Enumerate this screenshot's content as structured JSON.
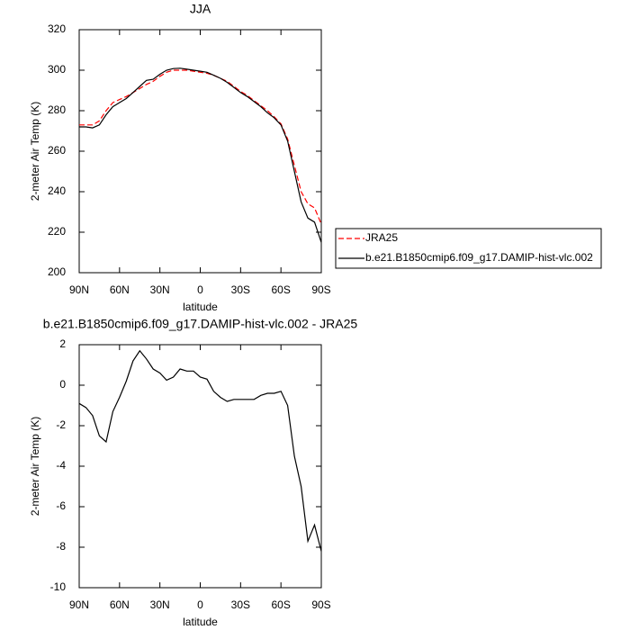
{
  "chart_data": [
    {
      "type": "line",
      "title": "JJA",
      "x_label": "latitude",
      "y_label": "2-meter Air Temp (K)",
      "x": [
        90,
        85,
        80,
        75,
        70,
        65,
        60,
        55,
        50,
        45,
        40,
        35,
        30,
        25,
        20,
        15,
        10,
        5,
        0,
        -5,
        -10,
        -15,
        -20,
        -25,
        -30,
        -35,
        -40,
        -45,
        -50,
        -55,
        -60,
        -65,
        -70,
        -75,
        -80,
        -85,
        -90
      ],
      "series": [
        {
          "name": "JRA25",
          "color": "#ff0000",
          "line_style": "dashed",
          "values": [
            273,
            273,
            273,
            275,
            280,
            284,
            285.5,
            287,
            289,
            291,
            293,
            294.5,
            297,
            299,
            300,
            300,
            300,
            299.5,
            299,
            298.5,
            297.5,
            296,
            294.5,
            292,
            289.5,
            287.5,
            285,
            282.5,
            280,
            277,
            273.5,
            266,
            253,
            240,
            234,
            232,
            224
          ]
        },
        {
          "name": "b.e21.B1850cmip6.f09_g17.DAMIP-hist-vlc.002",
          "color": "#000000",
          "line_style": "solid",
          "values": [
            272,
            272,
            271.5,
            273,
            278,
            282,
            284,
            286,
            289,
            292,
            295,
            295.5,
            298,
            300,
            300.8,
            301,
            300.5,
            300,
            299.5,
            299,
            297.5,
            296,
            294,
            291.5,
            289,
            287,
            284.5,
            282,
            279,
            276.5,
            273,
            265,
            250,
            235,
            227,
            225,
            215
          ]
        }
      ],
      "xlim": [
        90,
        -90
      ],
      "xticks": [
        {
          "value": 90,
          "label": "90N"
        },
        {
          "value": 60,
          "label": "60N"
        },
        {
          "value": 30,
          "label": "30N"
        },
        0,
        {
          "value": -30,
          "label": "30S"
        },
        {
          "value": -60,
          "label": "60S"
        },
        {
          "value": -90,
          "label": "90S"
        }
      ],
      "ylim": [
        200,
        320
      ],
      "yticks": [
        200,
        220,
        240,
        260,
        280,
        300,
        320
      ]
    },
    {
      "type": "line",
      "title": "b.e21.B1850cmip6.f09_g17.DAMIP-hist-vlc.002 - JRA25",
      "x_label": "latitude",
      "y_label": "2-meter Air Temp (K)",
      "x": [
        90,
        85,
        80,
        75,
        70,
        65,
        60,
        55,
        50,
        45,
        40,
        35,
        30,
        25,
        20,
        15,
        10,
        5,
        0,
        -5,
        -10,
        -15,
        -20,
        -25,
        -30,
        -35,
        -40,
        -45,
        -50,
        -55,
        -60,
        -65,
        -70,
        -75,
        -80,
        -85,
        -90
      ],
      "series": [
        {
          "color": "#000000",
          "line_style": "solid",
          "values": [
            -0.9,
            -1.1,
            -1.5,
            -2.5,
            -2.8,
            -1.3,
            -0.6,
            0.2,
            1.2,
            1.7,
            1.3,
            0.8,
            0.6,
            0.25,
            0.4,
            0.8,
            0.7,
            0.7,
            0.4,
            0.3,
            -0.3,
            -0.6,
            -0.8,
            -0.7,
            -0.7,
            -0.7,
            -0.7,
            -0.5,
            -0.4,
            -0.4,
            -0.3,
            -1.0,
            -3.5,
            -5.0,
            -7.7,
            -6.9,
            -8.2
          ]
        }
      ],
      "xlim": [
        90,
        -90
      ],
      "xticks": [
        {
          "value": 90,
          "label": "90N"
        },
        {
          "value": 60,
          "label": "60N"
        },
        {
          "value": 30,
          "label": "30N"
        },
        0,
        {
          "value": -30,
          "label": "30S"
        },
        {
          "value": -60,
          "label": "60S"
        },
        {
          "value": -90,
          "label": "90S"
        }
      ],
      "ylim": [
        -10,
        2
      ],
      "yticks": [
        -10,
        -8,
        -6,
        -4,
        -2,
        0,
        2
      ]
    }
  ]
}
